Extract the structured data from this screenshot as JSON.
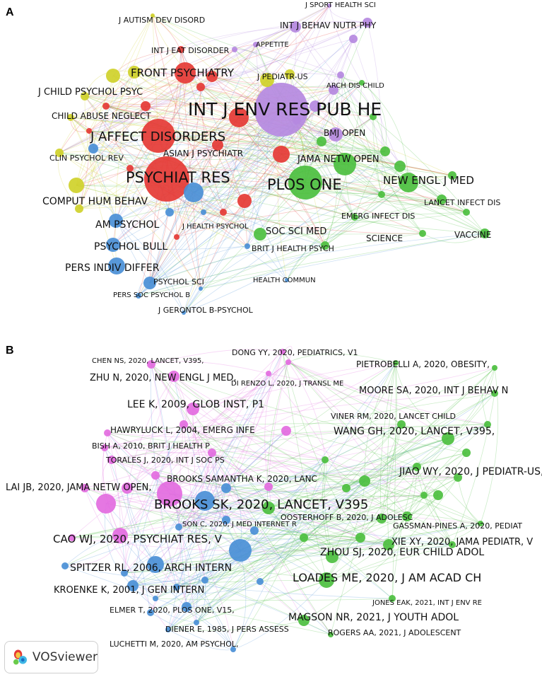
{
  "panels": {
    "a": {
      "letter": "A",
      "labels": {
        "int_j_env": "INT J ENV RES PUB HE",
        "plos_one": "PLOS ONE",
        "psychiat_res": "PSYCHIAT RES",
        "j_affect": "J AFFECT DISORDERS",
        "front_psych": "FRONT PSYCHIATRY",
        "j_child_psychol": "J CHILD PSYCHOL PSYC",
        "child_abuse": "CHILD ABUSE NEGLECT",
        "clin_psychol_rev": "CLIN PSYCHOL REV",
        "comput_hum": "COMPUT HUM BEHAV",
        "am_psychol": "AM PSYCHOL",
        "psychol_bull": "PSYCHOL BULL",
        "pers_indiv": "PERS INDIV DIFFER",
        "psychol_sci": "PSYCHOL SCI",
        "pers_soc": "PERS SOC PSYCHOL B",
        "j_gerontol": "J GERONTOL B-PSYCHOL",
        "health_commun": "HEALTH COMMUN",
        "brit_j_health": "BRIT J HEALTH PSYCH",
        "soc_sci_med": "SOC SCI MED",
        "j_health_psychol": "J HEALTH PSYCHOL",
        "asian_j": "ASIAN J PSYCHIATR",
        "bmj_open": "BMJ OPEN",
        "jama_netw": "JAMA NETW OPEN",
        "new_engl": "NEW ENGL J MED",
        "lancet_infect": "LANCET INFECT DIS",
        "emerg_infect": "EMERG INFECT DIS",
        "science": "SCIENCE",
        "vaccine": "VACCINE",
        "arch_dis": "ARCH DIS CHILD",
        "j_pediatr": "J PEDIATR-US",
        "appetite": "APPETITE",
        "int_j_behav": "INT J BEHAV NUTR PHY",
        "j_sport": "J SPORT HEALTH SCI",
        "j_autism": "J AUTISM DEV DISORD",
        "int_j_eat": "INT J EAT DISORDER"
      }
    },
    "b": {
      "letter": "B",
      "labels": {
        "brooks": "BROOKS SK, 2020, LANCET, V395",
        "cao": "CAO WJ, 2020, PSYCHIAT RES, V",
        "spitzer": "SPITZER RL, 2006, ARCH INTERN",
        "kroenke": "KROENKE K, 2001, J GEN INTERN",
        "elmer": "ELMER T, 2020, PLOS ONE, V15,",
        "diener": "DIENER E, 1985, J PERS ASSESS",
        "luchetti": "LUCHETTI M, 2020, AM PSYCHOL,",
        "magson": "MAGSON NR, 2021, J YOUTH ADOL",
        "rogers": "ROGERS AA, 2021, J ADOLESCENT",
        "jones": "JONES EAK, 2021, INT J ENV RE",
        "loades": "LOADES ME, 2020, J AM ACAD CH",
        "zhou": "ZHOU SJ, 2020, EUR CHILD ADOL",
        "xie": "XIE XY, 2020, JAMA PEDIATR, V",
        "gassman": "GASSMAN-PINES A, 2020, PEDIAT",
        "oosterhoff": "OOSTERHOFF B, 2020, J ADOLESC",
        "son": "SON C, 2020, J MED INTERNET R",
        "jiao": "JIAO WY, 2020, J PEDIATR-US,",
        "wang": "WANG GH, 2020, LANCET, V395,",
        "viner": "VINER RM, 2020, LANCET CHILD",
        "moore": "MOORE SA, 2020, INT J BEHAV N",
        "pietrobelli": "PIETROBELLI A, 2020, OBESITY,",
        "dong": "DONG YY, 2020, PEDIATRICS, V1",
        "direnzo": "DI RENZO L, 2020, J TRANSL ME",
        "chen": "CHEN NS, 2020, LANCET, V395,",
        "zhu": "ZHU N, 2020, NEW ENGL J MED,",
        "lee": "LEE K, 2009, GLOB INST, P1",
        "hawryluck": "HAWRYLUCK L, 2004, EMERG INFE",
        "bish": "BISH A, 2010, BRIT J HEALTH P",
        "torales": "TORALES J, 2020, INT J SOC PS",
        "lai": "LAI JB, 2020, JAMA NETW OPEN,",
        "brooks_sam": "BROOKS SAMANTHA K, 2020, LANC"
      }
    }
  },
  "badge": {
    "text": "VOSviewer",
    "icon": "vosviewer-logo-icon"
  },
  "colors": {
    "red": "#e53935",
    "yellow": "#cfd12a",
    "green": "#4cbf3f",
    "blue": "#4a8fd6",
    "purple": "#b589e0",
    "pink": "#e36be0"
  }
}
